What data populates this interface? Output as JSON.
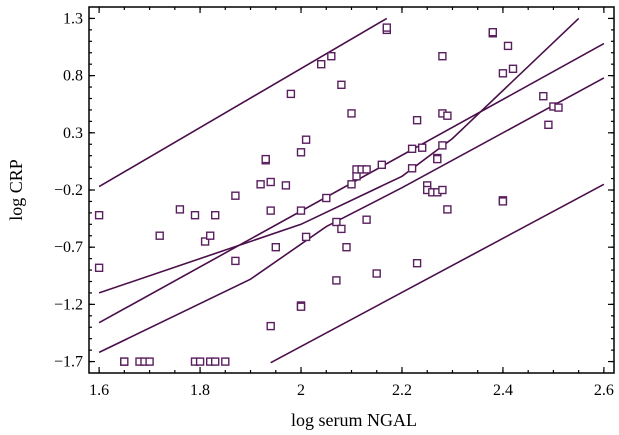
{
  "chart_data": {
    "type": "scatter",
    "title": "",
    "xlabel": "log serum NGAL",
    "ylabel": "log CRP",
    "xlim": [
      1.58,
      2.62
    ],
    "ylim": [
      -1.8,
      1.4
    ],
    "xticks": [
      1.6,
      1.8,
      2.0,
      2.2,
      2.4,
      2.6
    ],
    "xtick_labels": [
      "1.6",
      "1.8",
      "2",
      "2.2",
      "2.4",
      "2.6"
    ],
    "yticks": [
      -1.7,
      -1.2,
      -0.7,
      -0.2,
      0.3,
      0.8,
      1.3
    ],
    "ytick_labels": [
      "−1.7",
      "−1.2",
      "−0.7",
      "−0.2",
      "0.3",
      "0.8",
      "1.3"
    ],
    "grid": false,
    "legend": false,
    "colors": {
      "marker": "#5a1f5e",
      "line": "#4a0f4a",
      "axis": "#000000"
    },
    "points": [
      {
        "x": 1.6,
        "y": -0.42
      },
      {
        "x": 1.6,
        "y": -0.88
      },
      {
        "x": 1.65,
        "y": -1.7
      },
      {
        "x": 1.65,
        "y": -1.7
      },
      {
        "x": 1.68,
        "y": -1.7
      },
      {
        "x": 1.69,
        "y": -1.7
      },
      {
        "x": 1.7,
        "y": -1.7
      },
      {
        "x": 1.72,
        "y": -0.6
      },
      {
        "x": 1.76,
        "y": -0.37
      },
      {
        "x": 1.79,
        "y": -0.42
      },
      {
        "x": 1.79,
        "y": -1.7
      },
      {
        "x": 1.8,
        "y": -1.7
      },
      {
        "x": 1.81,
        "y": -0.65
      },
      {
        "x": 1.82,
        "y": -1.7
      },
      {
        "x": 1.82,
        "y": -0.6
      },
      {
        "x": 1.83,
        "y": -0.42
      },
      {
        "x": 1.83,
        "y": -1.7
      },
      {
        "x": 1.85,
        "y": -1.7
      },
      {
        "x": 1.87,
        "y": -0.25
      },
      {
        "x": 1.87,
        "y": -0.82
      },
      {
        "x": 1.92,
        "y": -0.15
      },
      {
        "x": 1.93,
        "y": 0.06
      },
      {
        "x": 1.93,
        "y": 0.07
      },
      {
        "x": 1.94,
        "y": -0.13
      },
      {
        "x": 1.94,
        "y": -0.38
      },
      {
        "x": 1.94,
        "y": -1.39
      },
      {
        "x": 1.95,
        "y": -0.7
      },
      {
        "x": 1.97,
        "y": -0.16
      },
      {
        "x": 1.98,
        "y": 0.64
      },
      {
        "x": 2.0,
        "y": 0.13
      },
      {
        "x": 2.0,
        "y": -0.38
      },
      {
        "x": 2.0,
        "y": -1.21
      },
      {
        "x": 2.0,
        "y": -1.22
      },
      {
        "x": 2.01,
        "y": 0.24
      },
      {
        "x": 2.01,
        "y": -0.61
      },
      {
        "x": 2.04,
        "y": 0.9
      },
      {
        "x": 2.05,
        "y": -0.27
      },
      {
        "x": 2.06,
        "y": 0.97
      },
      {
        "x": 2.07,
        "y": -0.48
      },
      {
        "x": 2.07,
        "y": -0.99
      },
      {
        "x": 2.08,
        "y": 0.72
      },
      {
        "x": 2.08,
        "y": -0.54
      },
      {
        "x": 2.09,
        "y": -0.7
      },
      {
        "x": 2.1,
        "y": 0.47
      },
      {
        "x": 2.1,
        "y": -0.15
      },
      {
        "x": 2.11,
        "y": -0.08
      },
      {
        "x": 2.11,
        "y": -0.02
      },
      {
        "x": 2.12,
        "y": -0.02
      },
      {
        "x": 2.13,
        "y": -0.02
      },
      {
        "x": 2.13,
        "y": -0.46
      },
      {
        "x": 2.15,
        "y": -0.93
      },
      {
        "x": 2.16,
        "y": 0.02
      },
      {
        "x": 2.17,
        "y": 1.2
      },
      {
        "x": 2.17,
        "y": 1.22
      },
      {
        "x": 2.22,
        "y": 0.16
      },
      {
        "x": 2.22,
        "y": -0.01
      },
      {
        "x": 2.23,
        "y": 0.41
      },
      {
        "x": 2.23,
        "y": -0.84
      },
      {
        "x": 2.24,
        "y": 0.17
      },
      {
        "x": 2.25,
        "y": -0.16
      },
      {
        "x": 2.25,
        "y": -0.2
      },
      {
        "x": 2.26,
        "y": -0.22
      },
      {
        "x": 2.27,
        "y": 0.08
      },
      {
        "x": 2.27,
        "y": 0.07
      },
      {
        "x": 2.27,
        "y": -0.22
      },
      {
        "x": 2.28,
        "y": 0.47
      },
      {
        "x": 2.28,
        "y": 0.97
      },
      {
        "x": 2.28,
        "y": 0.19
      },
      {
        "x": 2.28,
        "y": -0.2
      },
      {
        "x": 2.29,
        "y": 0.45
      },
      {
        "x": 2.29,
        "y": -0.37
      },
      {
        "x": 2.38,
        "y": 1.17
      },
      {
        "x": 2.38,
        "y": 1.18
      },
      {
        "x": 2.4,
        "y": 0.82
      },
      {
        "x": 2.4,
        "y": -0.29
      },
      {
        "x": 2.4,
        "y": -0.3
      },
      {
        "x": 2.41,
        "y": 1.06
      },
      {
        "x": 2.42,
        "y": 0.86
      },
      {
        "x": 2.48,
        "y": 0.62
      },
      {
        "x": 2.49,
        "y": 0.37
      },
      {
        "x": 2.5,
        "y": 0.53
      },
      {
        "x": 2.51,
        "y": 0.52
      }
    ],
    "lines": [
      {
        "x": [
          1.6,
          2.17
        ],
        "y": [
          -0.17,
          1.3
        ]
      },
      {
        "x": [
          1.6,
          2.0,
          2.2,
          2.3,
          2.55
        ],
        "y": [
          -1.1,
          -0.5,
          -0.08,
          0.25,
          1.3
        ]
      },
      {
        "x": [
          1.6,
          2.6
        ],
        "y": [
          -1.36,
          1.08
        ]
      },
      {
        "x": [
          1.6,
          1.9,
          2.05,
          2.2,
          2.6
        ],
        "y": [
          -1.62,
          -0.98,
          -0.52,
          -0.18,
          0.78
        ]
      },
      {
        "x": [
          1.94,
          2.6
        ],
        "y": [
          -1.71,
          -0.15
        ]
      }
    ]
  }
}
